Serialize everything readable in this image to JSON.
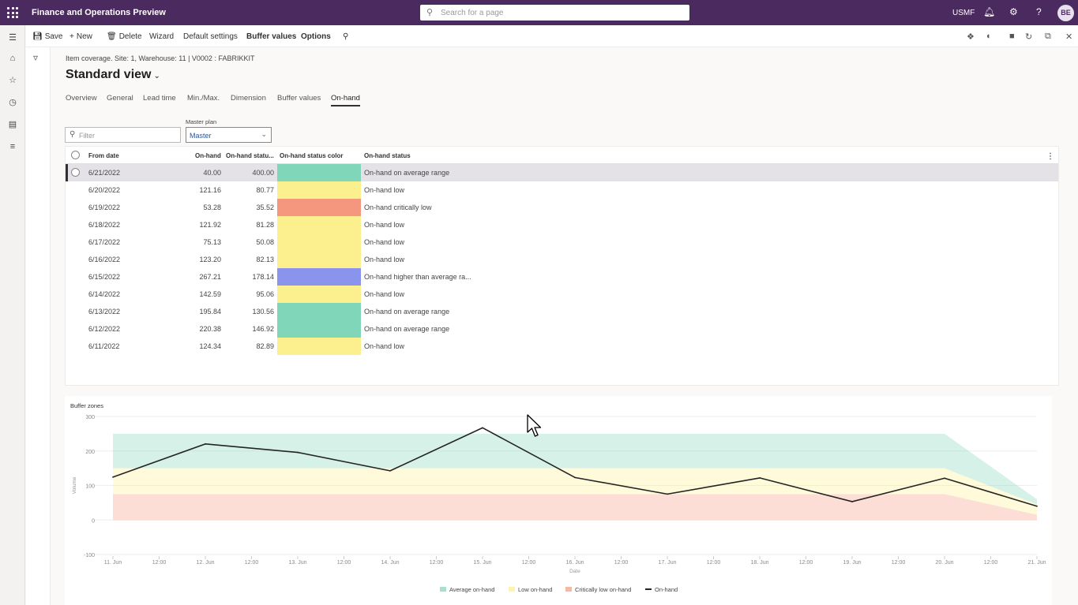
{
  "app": {
    "title": "Finance and Operations Preview",
    "search_placeholder": "Search for a page",
    "company": "USMF",
    "user_initials": "BE"
  },
  "actions": {
    "save": "Save",
    "new": "New",
    "delete": "Delete",
    "wizard": "Wizard",
    "default_settings": "Default settings",
    "buffer_values": "Buffer values",
    "options": "Options"
  },
  "page": {
    "breadcrumb": "Item coverage. Site: 1, Warehouse: 11  |  V0002 : FABRIKKIT",
    "title": "Standard view"
  },
  "tabs": [
    "Overview",
    "General",
    "Lead time",
    "Min./Max.",
    "Dimension",
    "Buffer values",
    "On-hand"
  ],
  "active_tab": "On-hand",
  "filter": {
    "placeholder": "Filter"
  },
  "master_plan": {
    "label": "Master plan",
    "value": "Master"
  },
  "grid": {
    "columns": [
      "From date",
      "On-hand",
      "On-hand statu...",
      "On-hand status color",
      "On-hand status"
    ],
    "rows": [
      {
        "date": "6/21/2022",
        "onhand": "40.00",
        "pct": "400.00",
        "color": "#7fd6b8",
        "status": "On-hand on average range"
      },
      {
        "date": "6/20/2022",
        "onhand": "121.16",
        "pct": "80.77",
        "color": "#fbf08d",
        "status": "On-hand low"
      },
      {
        "date": "6/19/2022",
        "onhand": "53.28",
        "pct": "35.52",
        "color": "#f5977f",
        "status": "On-hand critically low"
      },
      {
        "date": "6/18/2022",
        "onhand": "121.92",
        "pct": "81.28",
        "color": "#fbf08d",
        "status": "On-hand low"
      },
      {
        "date": "6/17/2022",
        "onhand": "75.13",
        "pct": "50.08",
        "color": "#fbf08d",
        "status": "On-hand low"
      },
      {
        "date": "6/16/2022",
        "onhand": "123.20",
        "pct": "82.13",
        "color": "#fbf08d",
        "status": "On-hand low"
      },
      {
        "date": "6/15/2022",
        "onhand": "267.21",
        "pct": "178.14",
        "color": "#8b94ec",
        "status": "On-hand higher than average ra..."
      },
      {
        "date": "6/14/2022",
        "onhand": "142.59",
        "pct": "95.06",
        "color": "#fbf08d",
        "status": "On-hand low"
      },
      {
        "date": "6/13/2022",
        "onhand": "195.84",
        "pct": "130.56",
        "color": "#7fd6b8",
        "status": "On-hand on average range"
      },
      {
        "date": "6/12/2022",
        "onhand": "220.38",
        "pct": "146.92",
        "color": "#7fd6b8",
        "status": "On-hand on average range"
      },
      {
        "date": "6/11/2022",
        "onhand": "124.34",
        "pct": "82.89",
        "color": "#fbf08d",
        "status": "On-hand low"
      }
    ]
  },
  "chart_data": {
    "type": "area",
    "title": "Buffer zones",
    "xlabel": "Date",
    "ylabel": "Volume",
    "ylim": [
      -100,
      300
    ],
    "yticks": [
      300,
      200,
      100,
      0,
      -100
    ],
    "xticks": [
      "11. Jun",
      "12:00",
      "12. Jun",
      "12:00",
      "13. Jun",
      "12:00",
      "14. Jun",
      "12:00",
      "15. Jun",
      "12:00",
      "16. Jun",
      "12:00",
      "17. Jun",
      "12:00",
      "18. Jun",
      "12:00",
      "19. Jun",
      "12:00",
      "20. Jun",
      "12:00",
      "21. Jun"
    ],
    "x": [
      "11. Jun",
      "12. Jun",
      "13. Jun",
      "14. Jun",
      "15. Jun",
      "16. Jun",
      "17. Jun",
      "18. Jun",
      "19. Jun",
      "20. Jun",
      "21. Jun"
    ],
    "grid": true,
    "legend_position": "bottom",
    "series": [
      {
        "name": "Average on-hand",
        "kind": "band",
        "color": "#7fd6b8",
        "lower": [
          150,
          150,
          150,
          150,
          150,
          150,
          150,
          150,
          150,
          150,
          45
        ],
        "upper": [
          250,
          250,
          250,
          250,
          250,
          250,
          250,
          250,
          250,
          250,
          60
        ]
      },
      {
        "name": "Low on-hand",
        "kind": "band",
        "color": "#fbf08d",
        "lower": [
          75,
          75,
          75,
          75,
          75,
          75,
          75,
          75,
          75,
          75,
          15
        ],
        "upper": [
          150,
          150,
          150,
          150,
          150,
          150,
          150,
          150,
          150,
          150,
          45
        ]
      },
      {
        "name": "Critically low on-hand",
        "kind": "band",
        "color": "#f5977f",
        "lower": [
          0,
          0,
          0,
          0,
          0,
          0,
          0,
          0,
          0,
          0,
          0
        ],
        "upper": [
          75,
          75,
          75,
          75,
          75,
          75,
          75,
          75,
          75,
          75,
          15
        ]
      },
      {
        "name": "On-hand",
        "kind": "line",
        "color": "#252423",
        "values": [
          124.34,
          220.38,
          195.84,
          142.59,
          267.21,
          123.2,
          75.13,
          121.92,
          53.28,
          121.16,
          40.0
        ]
      }
    ]
  }
}
